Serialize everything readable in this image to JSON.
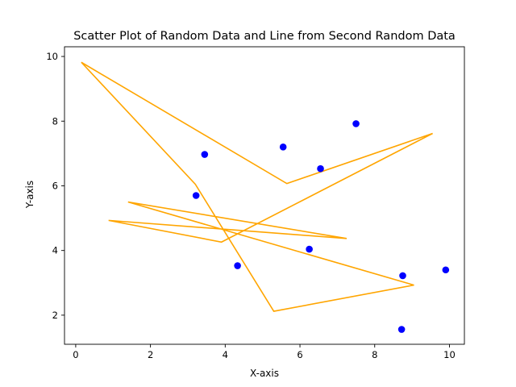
{
  "chart_data": {
    "type": "scatter",
    "title": "Scatter Plot of Random Data and Line from Second Random Data",
    "xlabel": "X-axis",
    "ylabel": "Y-axis",
    "xlim": [
      -0.3,
      10.4
    ],
    "ylim": [
      1.1,
      10.3
    ],
    "xticks": [
      0,
      2,
      4,
      6,
      8,
      10
    ],
    "yticks": [
      2,
      4,
      6,
      8,
      10
    ],
    "grid": false,
    "series": [
      {
        "kind": "scatter",
        "color": "#0000ff",
        "x": [
          3.45,
          5.55,
          7.5,
          6.55,
          3.22,
          4.33,
          6.25,
          8.75,
          9.9,
          8.72
        ],
        "y": [
          6.97,
          7.2,
          7.92,
          6.53,
          5.7,
          3.53,
          4.04,
          3.22,
          3.4,
          1.56
        ]
      },
      {
        "kind": "line",
        "color": "#ffa500",
        "x": [
          0.15,
          3.2,
          5.3,
          9.05,
          1.4,
          7.25,
          0.88,
          3.9,
          9.55,
          5.65,
          0.15
        ],
        "y": [
          9.82,
          6.05,
          2.12,
          2.93,
          5.5,
          4.37,
          4.93,
          4.26,
          7.62,
          6.07,
          9.82
        ]
      }
    ]
  }
}
